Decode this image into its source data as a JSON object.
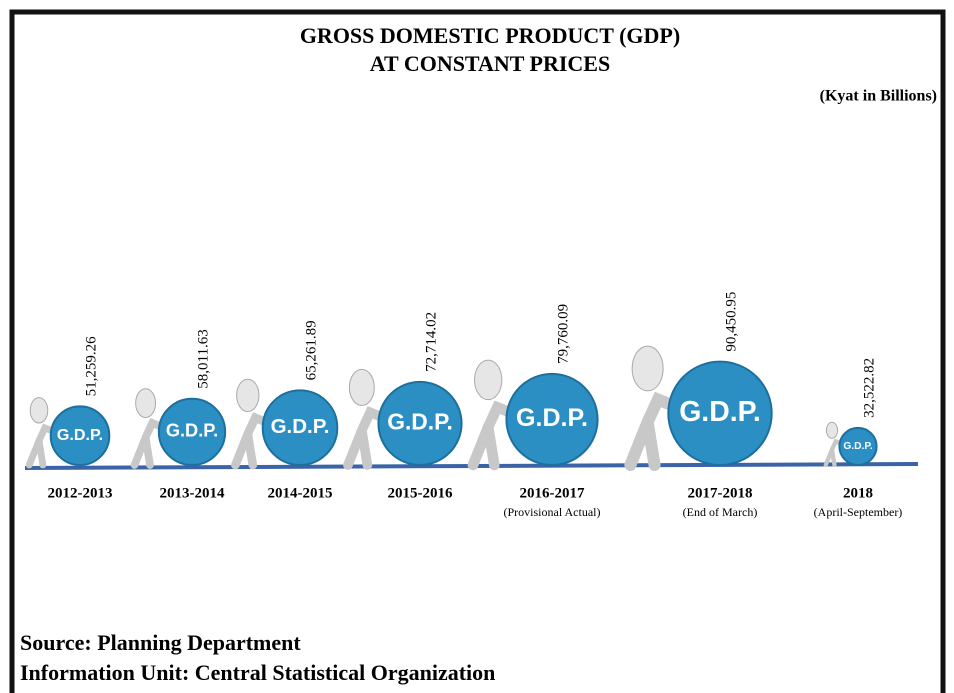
{
  "chart_data": {
    "type": "pictograph",
    "title": [
      "GROSS DOMESTIC PRODUCT (GDP)",
      "AT CONSTANT PRICES"
    ],
    "unit": "(Kyat in Billions)",
    "badge_text": "G.D.P.",
    "categories": [
      "2012-2013",
      "2013-2014",
      "2014-2015",
      "2015-2016",
      "2016-2017",
      "2017-2018",
      "2018"
    ],
    "notes": [
      null,
      null,
      null,
      null,
      "(Provisional Actual)",
      "(End of March)",
      "(April-September)"
    ],
    "values": [
      51259.26,
      58011.63,
      65261.89,
      72714.02,
      79760.09,
      90450.95,
      32522.82
    ],
    "value_labels": [
      "51,259.26",
      "58,011.63",
      "65,261.89",
      "72,714.02",
      "79,760.09",
      "90,450.95",
      "32,522.82"
    ],
    "color": "#2b8fc4"
  },
  "footer": {
    "source": "Source: Planning Department",
    "unit": "Information Unit: Central Statistical Organization"
  }
}
